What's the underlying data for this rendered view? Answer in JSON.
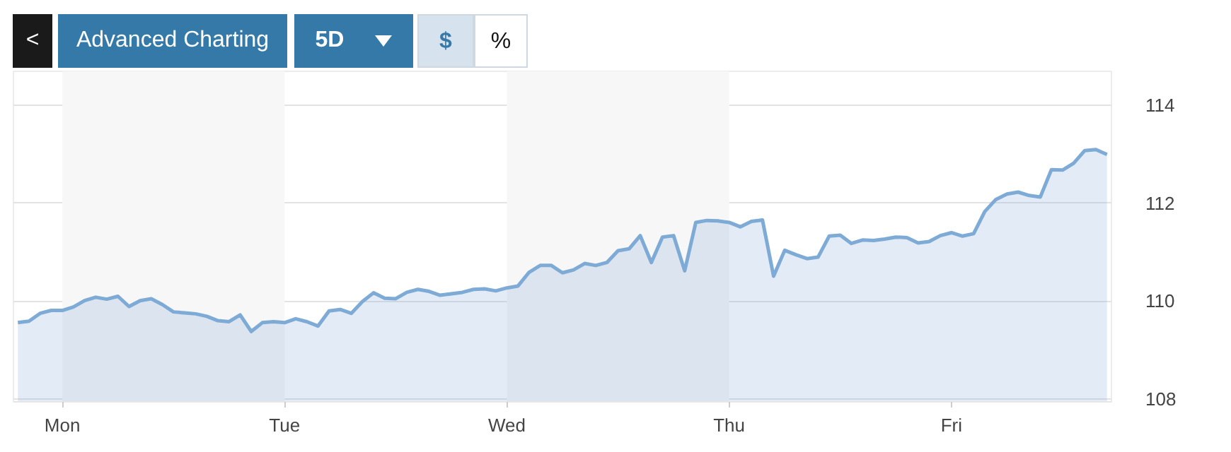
{
  "chart_data": {
    "type": "area",
    "annotations": [
      "<",
      "Advanced Charting",
      "5D",
      "$",
      "%"
    ],
    "categories": [
      null,
      null,
      null,
      null,
      "Mon",
      null,
      null,
      null,
      null,
      null,
      null,
      null,
      null,
      null,
      null,
      null,
      null,
      null,
      null,
      null,
      null,
      null,
      null,
      null,
      "Tue",
      null,
      null,
      null,
      null,
      null,
      null,
      null,
      null,
      null,
      null,
      null,
      null,
      null,
      null,
      null,
      null,
      null,
      null,
      null,
      "Wed",
      null,
      null,
      null,
      null,
      null,
      null,
      null,
      null,
      null,
      null,
      null,
      null,
      null,
      null,
      null,
      null,
      null,
      null,
      null,
      "Thu",
      null,
      null,
      null,
      null,
      null,
      null,
      null,
      null,
      null,
      null,
      null,
      null,
      null,
      null,
      null,
      null,
      null,
      null,
      null,
      "Fri",
      null,
      null,
      null,
      null,
      null,
      null,
      null,
      null,
      null,
      null,
      null,
      null,
      null,
      null
    ],
    "series": [
      {
        "color": "#7eaad6",
        "values": [
          109.56,
          109.59,
          109.75,
          109.81,
          109.81,
          109.88,
          110.01,
          110.08,
          110.04,
          110.1,
          109.89,
          110.01,
          110.05,
          109.93,
          109.78,
          109.76,
          109.74,
          109.69,
          109.6,
          109.58,
          109.72,
          109.38,
          109.56,
          109.58,
          109.56,
          109.64,
          109.58,
          109.49,
          109.8,
          109.83,
          109.75,
          109.99,
          110.17,
          110.06,
          110.05,
          110.18,
          110.24,
          110.2,
          110.12,
          110.15,
          110.18,
          110.24,
          110.25,
          110.21,
          110.27,
          110.31,
          110.59,
          110.73,
          110.73,
          110.58,
          110.64,
          110.77,
          110.73,
          110.79,
          111.03,
          111.07,
          111.34,
          110.79,
          111.31,
          111.34,
          110.62,
          111.61,
          111.65,
          111.64,
          111.61,
          111.52,
          111.63,
          111.66,
          110.51,
          111.04,
          110.95,
          110.87,
          110.9,
          111.33,
          111.35,
          111.18,
          111.25,
          111.24,
          111.27,
          111.31,
          111.3,
          111.19,
          111.22,
          111.34,
          111.4,
          111.33,
          111.38,
          111.83,
          112.08,
          112.19,
          112.23,
          112.16,
          112.13,
          112.69,
          112.68,
          112.82,
          113.08,
          113.1,
          113.0
        ]
      }
    ],
    "ylim": [
      107.94,
      114.7
    ],
    "yticks": [
      108,
      110,
      112,
      114
    ],
    "grid": "y",
    "bands": [
      {
        "axis": "x",
        "from": "Mon",
        "to": "Tue",
        "color": "#f7f7f7"
      },
      {
        "axis": "x",
        "from": "Wed",
        "to": "Thu",
        "color": "#f7f7f7"
      }
    ]
  }
}
